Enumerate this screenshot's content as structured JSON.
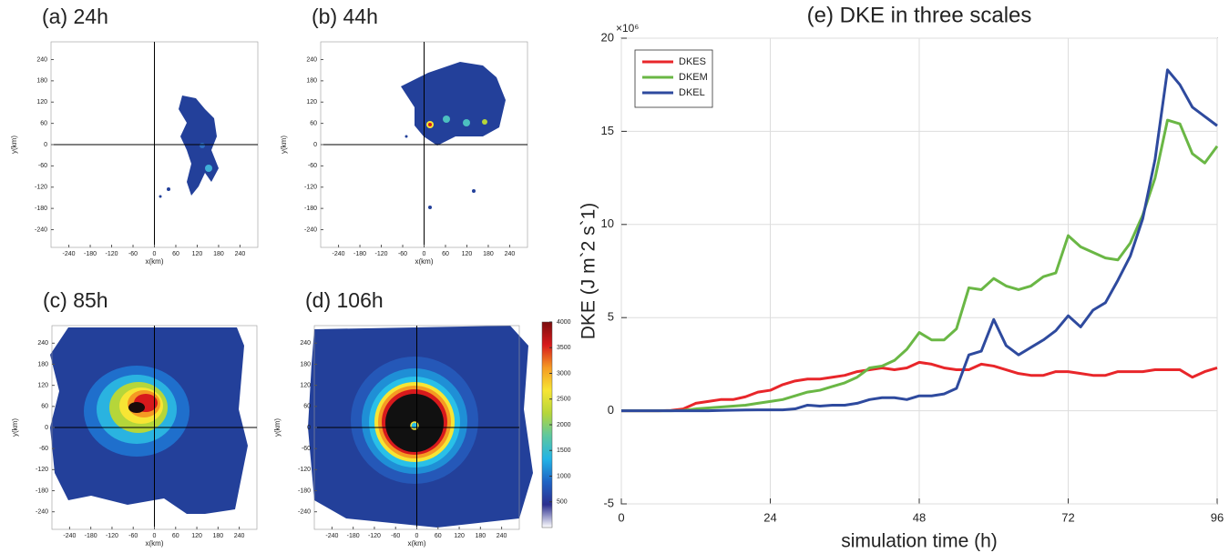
{
  "chart_data": [
    {
      "type": "map",
      "title": "(a) 24h",
      "xlabel": "x(km)",
      "ylabel": "y(km)",
      "xlim": [
        -290,
        290
      ],
      "ylim": [
        -290,
        290
      ],
      "xticks": [
        -240,
        -180,
        -120,
        -60,
        0,
        60,
        120,
        180,
        240
      ],
      "yticks": [
        -240,
        -180,
        -120,
        -60,
        0,
        60,
        120,
        180,
        240
      ]
    },
    {
      "type": "map",
      "title": "(b) 44h",
      "xlabel": "x(km)",
      "ylabel": "y(km)",
      "xlim": [
        -290,
        290
      ],
      "ylim": [
        -290,
        290
      ],
      "xticks": [
        -240,
        -180,
        -120,
        -60,
        0,
        60,
        120,
        180,
        240
      ],
      "yticks": [
        -240,
        -180,
        -120,
        -60,
        0,
        60,
        120,
        180,
        240
      ]
    },
    {
      "type": "map",
      "title": "(c) 85h",
      "xlabel": "x(km)",
      "ylabel": "y(km)",
      "xlim": [
        -290,
        290
      ],
      "ylim": [
        -290,
        290
      ],
      "xticks": [
        -240,
        -180,
        -120,
        -60,
        0,
        60,
        120,
        180,
        240
      ],
      "yticks": [
        -240,
        -180,
        -120,
        -60,
        0,
        60,
        120,
        180,
        240
      ]
    },
    {
      "type": "map",
      "title": "(d) 106h",
      "xlabel": "x(km)",
      "ylabel": "y(km)",
      "xlim": [
        -290,
        290
      ],
      "ylim": [
        -290,
        290
      ],
      "xticks": [
        -240,
        -180,
        -120,
        -60,
        0,
        60,
        120,
        180,
        240
      ],
      "yticks": [
        -240,
        -180,
        -120,
        -60,
        0,
        60,
        120,
        180,
        240
      ],
      "colorbar": {
        "lim": [
          0,
          4000
        ],
        "ticks": [
          500,
          1000,
          1500,
          2000,
          2500,
          3000,
          3500,
          4000
        ],
        "colors": [
          "#ffffff",
          "#2b2f8f",
          "#1e63c4",
          "#22b3e6",
          "#5cc7a0",
          "#b5d63a",
          "#f7e534",
          "#f59a23",
          "#d7191c",
          "#7a0d0d"
        ]
      }
    },
    {
      "type": "line",
      "title": "(e) DKE in three scales",
      "xlabel": "simulation time (h)",
      "ylabel": "DKE (J m`2 s`1)",
      "y_exponent": "×10⁶",
      "xlim": [
        0,
        96
      ],
      "ylim": [
        -5,
        20
      ],
      "xticks": [
        0,
        24,
        48,
        72,
        96
      ],
      "yticks": [
        -5,
        0,
        5,
        10,
        15,
        20
      ],
      "grid": true,
      "legend": "upper-left",
      "x": [
        0,
        2,
        4,
        6,
        8,
        10,
        12,
        14,
        16,
        18,
        20,
        22,
        24,
        26,
        28,
        30,
        32,
        34,
        36,
        38,
        40,
        42,
        44,
        46,
        48,
        50,
        52,
        54,
        56,
        58,
        60,
        62,
        64,
        66,
        68,
        70,
        72,
        74,
        76,
        78,
        80,
        82,
        84,
        86,
        88,
        90,
        92,
        94,
        96
      ],
      "series": [
        {
          "name": "DKES",
          "color": "#e8262a",
          "values": [
            0,
            0,
            0,
            0,
            0.02,
            0.1,
            0.4,
            0.5,
            0.6,
            0.6,
            0.75,
            1.0,
            1.1,
            1.4,
            1.6,
            1.7,
            1.7,
            1.8,
            1.9,
            2.1,
            2.2,
            2.3,
            2.2,
            2.3,
            2.6,
            2.5,
            2.3,
            2.2,
            2.2,
            2.5,
            2.4,
            2.2,
            2.0,
            1.9,
            1.9,
            2.1,
            2.1,
            2.0,
            1.9,
            1.9,
            2.1,
            2.1,
            2.1,
            2.2,
            2.2,
            2.2,
            1.8,
            2.1,
            2.3
          ]
        },
        {
          "name": "DKEM",
          "color": "#6ab745",
          "values": [
            0,
            0,
            0,
            0,
            0,
            0.02,
            0.1,
            0.15,
            0.2,
            0.25,
            0.3,
            0.4,
            0.5,
            0.6,
            0.8,
            1.0,
            1.1,
            1.3,
            1.5,
            1.8,
            2.3,
            2.4,
            2.7,
            3.3,
            4.2,
            3.8,
            3.8,
            4.4,
            6.6,
            6.5,
            7.1,
            6.7,
            6.5,
            6.7,
            7.2,
            7.4,
            9.4,
            8.8,
            8.5,
            8.2,
            8.1,
            9.0,
            10.5,
            12.5,
            15.6,
            15.4,
            13.8,
            13.3,
            14.2
          ]
        },
        {
          "name": "DKEL",
          "color": "#2e4a9e",
          "values": [
            0,
            0,
            0,
            0,
            0,
            0,
            0,
            0,
            0.02,
            0.03,
            0.04,
            0.05,
            0.05,
            0.05,
            0.1,
            0.3,
            0.25,
            0.3,
            0.3,
            0.4,
            0.6,
            0.7,
            0.7,
            0.6,
            0.8,
            0.8,
            0.9,
            1.2,
            3.0,
            3.2,
            4.9,
            3.5,
            3.0,
            3.4,
            3.8,
            4.3,
            5.1,
            4.5,
            5.4,
            5.8,
            7.0,
            8.3,
            10.3,
            13.5,
            18.3,
            17.5,
            16.3,
            15.8,
            15.3
          ]
        }
      ]
    }
  ]
}
